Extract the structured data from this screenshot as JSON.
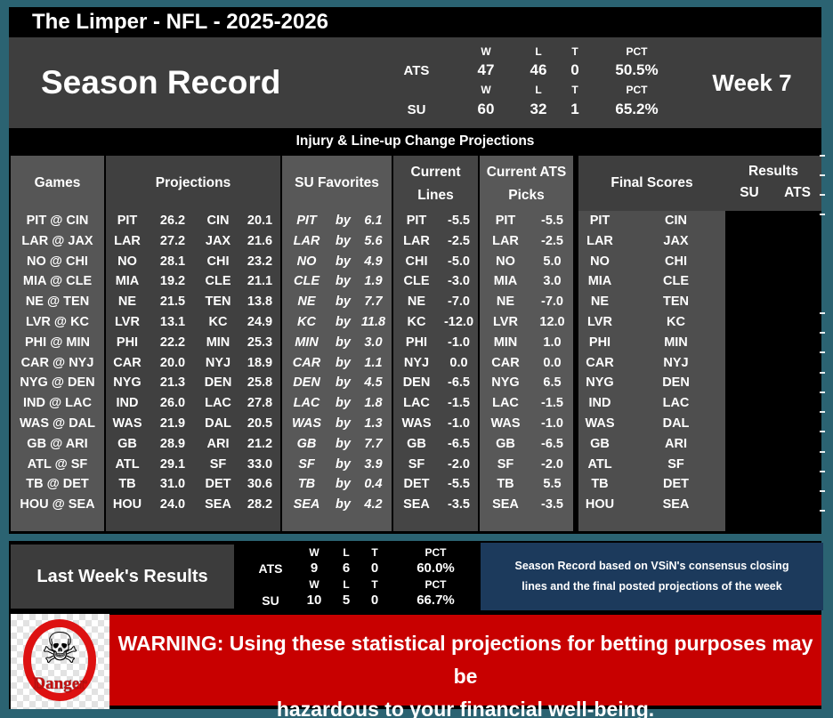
{
  "title": "The Limper - NFL - 2025-2026",
  "season_record": {
    "heading": "Season Record",
    "week": "Week 7",
    "col_headers": {
      "w": "W",
      "l": "L",
      "t": "T",
      "pct": "PCT"
    },
    "rows": [
      {
        "label": "ATS",
        "w": "47",
        "l": "46",
        "t": "0",
        "pct": "50.5%"
      },
      {
        "label": "SU",
        "w": "60",
        "l": "32",
        "t": "1",
        "pct": "65.2%"
      }
    ]
  },
  "subtitle_bar": "Injury & Line-up Change Projections",
  "table": {
    "headers": {
      "games": "Games",
      "projections": "Projections",
      "su_favorites": "SU Favorites",
      "current_lines_1": "Current",
      "current_lines_2": "Lines",
      "current_ats_1": "Current ATS",
      "current_ats_2": "Picks",
      "final_scores": "Final Scores",
      "results": "Results",
      "results_su": "SU",
      "results_ats": "ATS",
      "by_label": "by"
    },
    "rows": [
      {
        "game": "PIT @ CIN",
        "away": "PIT",
        "away_pts": "26.2",
        "home": "CIN",
        "home_pts": "20.1",
        "fav": "PIT",
        "margin": "6.1",
        "line_team": "PIT",
        "line_val": "-5.5",
        "pick_team": "PIT",
        "pick_val": "-5.5"
      },
      {
        "game": "LAR @ JAX",
        "away": "LAR",
        "away_pts": "27.2",
        "home": "JAX",
        "home_pts": "21.6",
        "fav": "LAR",
        "margin": "5.6",
        "line_team": "LAR",
        "line_val": "-2.5",
        "pick_team": "LAR",
        "pick_val": "-2.5"
      },
      {
        "game": "NO @ CHI",
        "away": "NO",
        "away_pts": "28.1",
        "home": "CHI",
        "home_pts": "23.2",
        "fav": "NO",
        "margin": "4.9",
        "line_team": "CHI",
        "line_val": "-5.0",
        "pick_team": "NO",
        "pick_val": "5.0"
      },
      {
        "game": "MIA @ CLE",
        "away": "MIA",
        "away_pts": "19.2",
        "home": "CLE",
        "home_pts": "21.1",
        "fav": "CLE",
        "margin": "1.9",
        "line_team": "CLE",
        "line_val": "-3.0",
        "pick_team": "MIA",
        "pick_val": "3.0"
      },
      {
        "game": "NE @ TEN",
        "away": "NE",
        "away_pts": "21.5",
        "home": "TEN",
        "home_pts": "13.8",
        "fav": "NE",
        "margin": "7.7",
        "line_team": "NE",
        "line_val": "-7.0",
        "pick_team": "NE",
        "pick_val": "-7.0"
      },
      {
        "game": "LVR @ KC",
        "away": "LVR",
        "away_pts": "13.1",
        "home": "KC",
        "home_pts": "24.9",
        "fav": "KC",
        "margin": "11.8",
        "line_team": "KC",
        "line_val": "-12.0",
        "pick_team": "LVR",
        "pick_val": "12.0"
      },
      {
        "game": "PHI @ MIN",
        "away": "PHI",
        "away_pts": "22.2",
        "home": "MIN",
        "home_pts": "25.3",
        "fav": "MIN",
        "margin": "3.0",
        "line_team": "PHI",
        "line_val": "-1.0",
        "pick_team": "MIN",
        "pick_val": "1.0"
      },
      {
        "game": "CAR @ NYJ",
        "away": "CAR",
        "away_pts": "20.0",
        "home": "NYJ",
        "home_pts": "18.9",
        "fav": "CAR",
        "margin": "1.1",
        "line_team": "NYJ",
        "line_val": "0.0",
        "pick_team": "CAR",
        "pick_val": "0.0"
      },
      {
        "game": "NYG @ DEN",
        "away": "NYG",
        "away_pts": "21.3",
        "home": "DEN",
        "home_pts": "25.8",
        "fav": "DEN",
        "margin": "4.5",
        "line_team": "DEN",
        "line_val": "-6.5",
        "pick_team": "NYG",
        "pick_val": "6.5"
      },
      {
        "game": "IND @ LAC",
        "away": "IND",
        "away_pts": "26.0",
        "home": "LAC",
        "home_pts": "27.8",
        "fav": "LAC",
        "margin": "1.8",
        "line_team": "LAC",
        "line_val": "-1.5",
        "pick_team": "LAC",
        "pick_val": "-1.5"
      },
      {
        "game": "WAS @ DAL",
        "away": "WAS",
        "away_pts": "21.9",
        "home": "DAL",
        "home_pts": "20.5",
        "fav": "WAS",
        "margin": "1.3",
        "line_team": "WAS",
        "line_val": "-1.0",
        "pick_team": "WAS",
        "pick_val": "-1.0"
      },
      {
        "game": "GB @ ARI",
        "away": "GB",
        "away_pts": "28.9",
        "home": "ARI",
        "home_pts": "21.2",
        "fav": "GB",
        "margin": "7.7",
        "line_team": "GB",
        "line_val": "-6.5",
        "pick_team": "GB",
        "pick_val": "-6.5"
      },
      {
        "game": "ATL @ SF",
        "away": "ATL",
        "away_pts": "29.1",
        "home": "SF",
        "home_pts": "33.0",
        "fav": "SF",
        "margin": "3.9",
        "line_team": "SF",
        "line_val": "-2.0",
        "pick_team": "SF",
        "pick_val": "-2.0"
      },
      {
        "game": "TB @ DET",
        "away": "TB",
        "away_pts": "31.0",
        "home": "DET",
        "home_pts": "30.6",
        "fav": "TB",
        "margin": "0.4",
        "line_team": "DET",
        "line_val": "-5.5",
        "pick_team": "TB",
        "pick_val": "5.5"
      },
      {
        "game": "HOU @ SEA",
        "away": "HOU",
        "away_pts": "24.0",
        "home": "SEA",
        "home_pts": "28.2",
        "fav": "SEA",
        "margin": "4.2",
        "line_team": "SEA",
        "line_val": "-3.5",
        "pick_team": "SEA",
        "pick_val": "-3.5"
      }
    ]
  },
  "last_week": {
    "heading": "Last Week's Results",
    "col_headers": {
      "w": "W",
      "l": "L",
      "t": "T",
      "pct": "PCT"
    },
    "rows": [
      {
        "label": "ATS",
        "w": "9",
        "l": "6",
        "t": "0",
        "pct": "60.0%"
      },
      {
        "label": "SU",
        "w": "10",
        "l": "5",
        "t": "0",
        "pct": "66.7%"
      }
    ]
  },
  "note": {
    "line1": "Season Record based on VSiN's consensus closing",
    "line2": "lines and the final posted projections of the week"
  },
  "warning": {
    "line1": "WARNING: Using these statistical projections for betting purposes may be",
    "line2": "hazardous to your financial well-being.",
    "danger_label": "Danger",
    "skull_icon": "☠"
  },
  "colors": {
    "border_teal": "#2b6372",
    "warning_red": "#c80000",
    "note_blue": "#1c3a5c",
    "panel_gray": "#3e3e3e"
  }
}
